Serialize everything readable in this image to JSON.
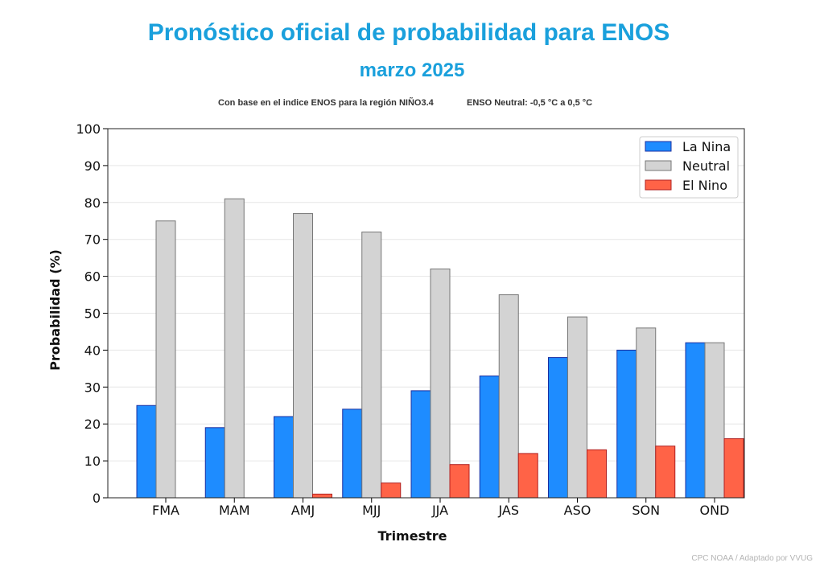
{
  "header": {
    "title": "Pronóstico oficial de probabilidad para ENOS",
    "subtitle": "marzo 2025",
    "note_left": "Con base en el indice ENOS para la región NIÑO3.4",
    "note_right": "ENSO Neutral: -0,5 °C a 0,5 °C"
  },
  "footer": {
    "credit": "CPC NOAA / Adaptado por VVUG"
  },
  "chart_data": {
    "type": "bar",
    "xlabel": "Trimestre",
    "ylabel": "Probabilidad (%)",
    "ylim": [
      0,
      100
    ],
    "yticks": [
      0,
      10,
      20,
      30,
      40,
      50,
      60,
      70,
      80,
      90,
      100
    ],
    "grid": true,
    "legend_position": "top-right",
    "categories": [
      "FMA",
      "MAM",
      "AMJ",
      "MJJ",
      "JJA",
      "JAS",
      "ASO",
      "SON",
      "OND"
    ],
    "series": [
      {
        "name": "La Nina",
        "color": "#1e8cff",
        "edge": "#1a2fa0",
        "values": [
          25,
          19,
          22,
          24,
          29,
          33,
          38,
          40,
          42
        ]
      },
      {
        "name": "Neutral",
        "color": "#d3d3d3",
        "edge": "#777777",
        "values": [
          75,
          81,
          77,
          72,
          62,
          55,
          49,
          46,
          42
        ]
      },
      {
        "name": "El Nino",
        "color": "#ff6347",
        "edge": "#b02020",
        "values": [
          0,
          0,
          1,
          4,
          9,
          12,
          13,
          14,
          16
        ]
      }
    ]
  }
}
